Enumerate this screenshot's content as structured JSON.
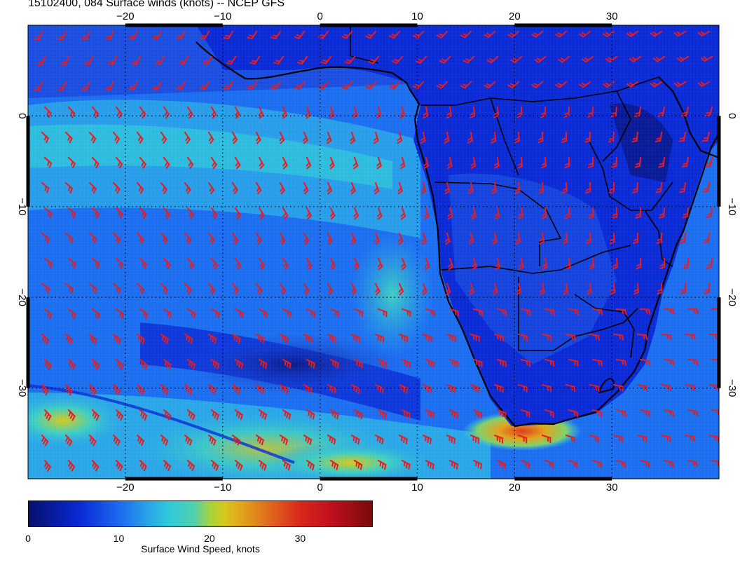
{
  "title": "15102400, 084 Surface winds (knots) -- NCEP GFS",
  "map": {
    "lon_range": [
      -30,
      41
    ],
    "lat_range": [
      -40,
      10
    ],
    "lon_ticks": [
      "−20",
      "−10",
      "0",
      "10",
      "20",
      "30"
    ],
    "lon_tick_values": [
      -20,
      -10,
      0,
      10,
      20,
      30
    ],
    "lat_ticks": [
      "0",
      "−10",
      "−20",
      "−30"
    ],
    "lat_tick_values": [
      0,
      -10,
      -20,
      -30
    ],
    "wind_barb_color": "#e81c1c",
    "coastline_color": "#000000"
  },
  "colorbar": {
    "title": "Surface Wind Speed, knots",
    "labels": [
      "0",
      "10",
      "20",
      "30"
    ],
    "label_values": [
      0,
      10,
      20,
      30
    ],
    "max": 38
  }
}
